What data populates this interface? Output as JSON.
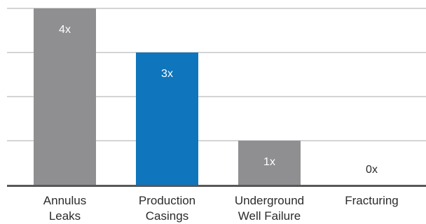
{
  "chart_data": {
    "type": "bar",
    "categories": [
      [
        "Annulus",
        "Leaks"
      ],
      [
        "Production",
        "Casings"
      ],
      [
        "Underground",
        "Well Failure"
      ],
      [
        "Fracturing"
      ]
    ],
    "values": [
      4,
      3,
      1,
      0
    ],
    "value_labels": [
      "4x",
      "3x",
      "1x",
      "0x"
    ],
    "bar_colors": [
      "#8f8f92",
      "#0f75bc",
      "#8f8f92",
      "#8f8f92"
    ],
    "title": "",
    "xlabel": "",
    "ylabel": "",
    "ylim": [
      0,
      4
    ],
    "grid": true,
    "legend": "none"
  },
  "colors": {
    "grid": "#a9a9ab",
    "baseline": "#58585a",
    "label_on_bar": "#ffffff",
    "label_outside": "#2b2b2b",
    "text": "#2b2b2b"
  }
}
